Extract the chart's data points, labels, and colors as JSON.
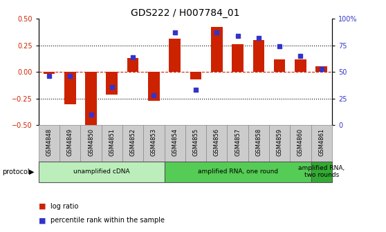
{
  "title": "GDS222 / H007784_01",
  "samples": [
    "GSM4848",
    "GSM4849",
    "GSM4850",
    "GSM4851",
    "GSM4852",
    "GSM4853",
    "GSM4854",
    "GSM4855",
    "GSM4856",
    "GSM4857",
    "GSM4858",
    "GSM4859",
    "GSM4860",
    "GSM4861"
  ],
  "log_ratio": [
    -0.02,
    -0.3,
    -0.5,
    -0.21,
    0.13,
    -0.27,
    0.31,
    -0.07,
    0.42,
    0.26,
    0.3,
    0.12,
    0.12,
    0.05
  ],
  "percentile": [
    46,
    46,
    10,
    36,
    64,
    28,
    87,
    33,
    87,
    84,
    82,
    74,
    65,
    53
  ],
  "protocols": [
    {
      "label": "unamplified cDNA",
      "start": 0,
      "end": 6,
      "color": "#bbeebb"
    },
    {
      "label": "amplified RNA, one round",
      "start": 6,
      "end": 13,
      "color": "#55cc55"
    },
    {
      "label": "amplified RNA,\ntwo rounds",
      "start": 13,
      "end": 14,
      "color": "#33aa33"
    }
  ],
  "bar_color_red": "#cc2200",
  "bar_color_blue": "#3333cc",
  "ylim_left": [
    -0.5,
    0.5
  ],
  "ylim_right": [
    0,
    100
  ],
  "yticks_left": [
    -0.5,
    -0.25,
    0,
    0.25,
    0.5
  ],
  "yticks_right": [
    0,
    25,
    50,
    75,
    100
  ],
  "protocol_label": "protocol",
  "legend_log": "log ratio",
  "legend_pct": "percentile rank within the sample",
  "title_fontsize": 10,
  "tick_fontsize": 7,
  "label_fontsize": 7
}
